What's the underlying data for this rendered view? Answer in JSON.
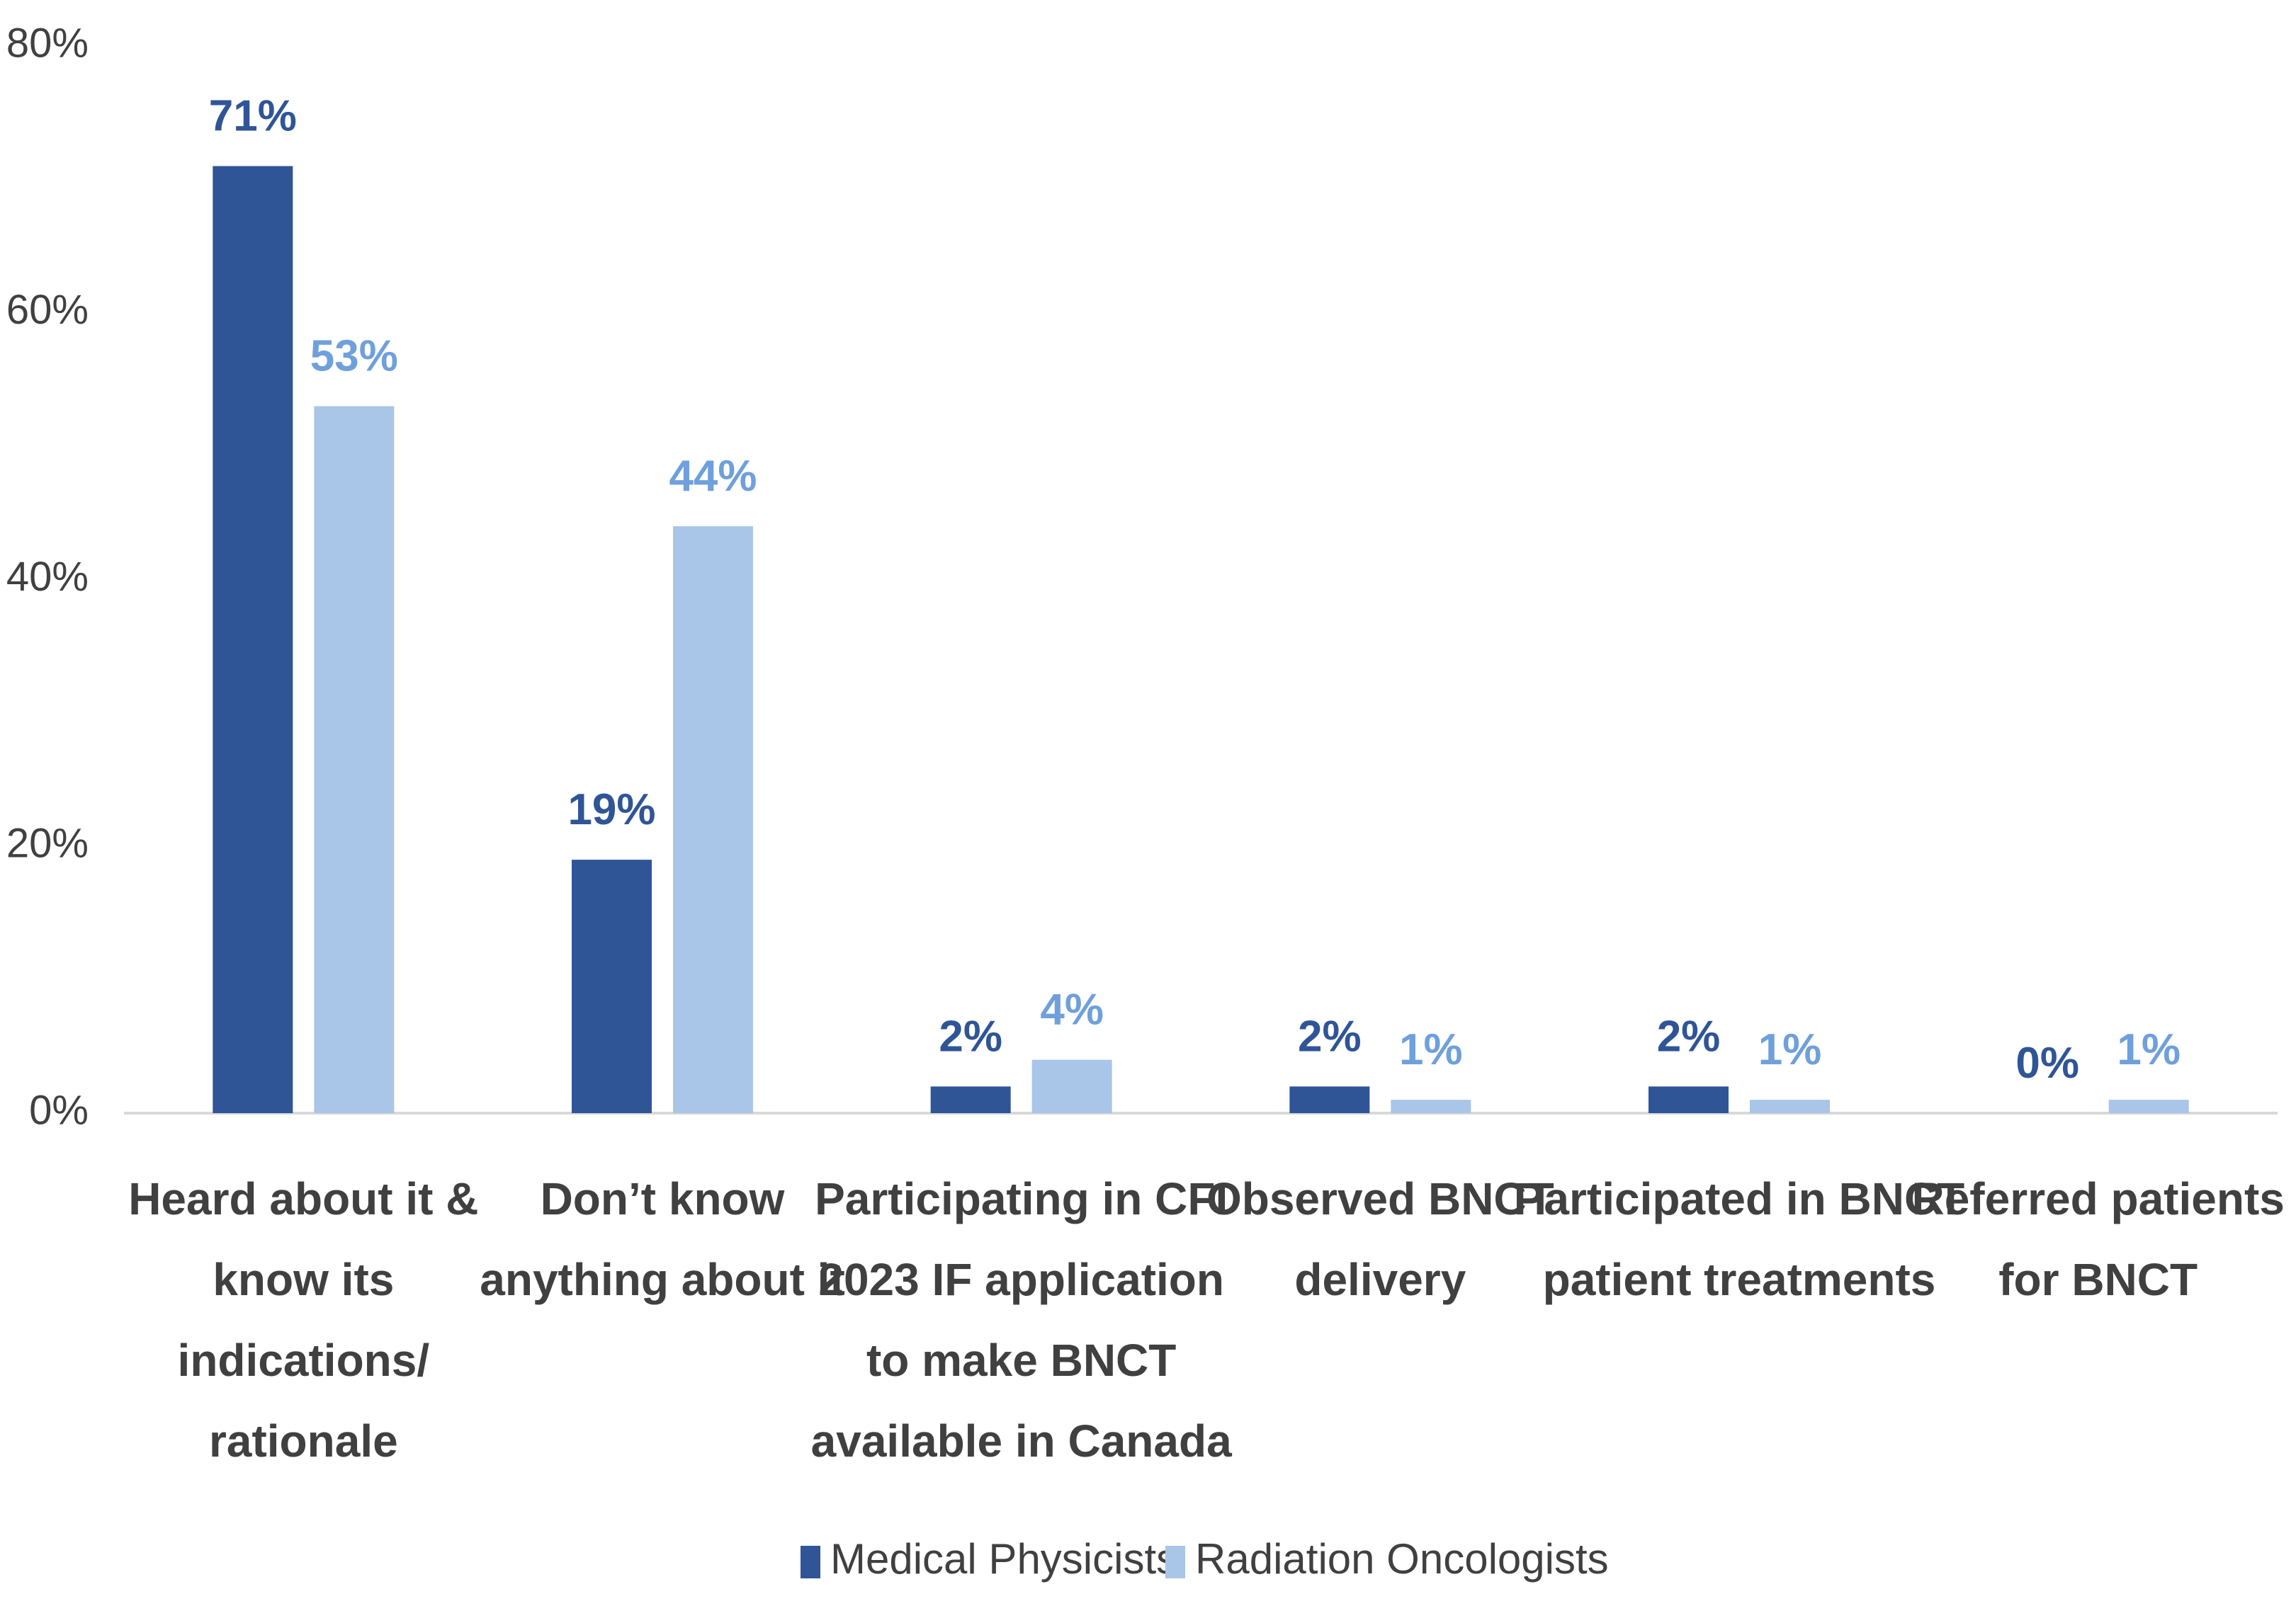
{
  "colors": {
    "medical_physicists": "#2f5597",
    "radiation_oncologists": "#a9c5e8",
    "medical_physicists_label": "#2f5597",
    "radiation_oncologists_label": "#6fa0db",
    "axis_text": "#404040",
    "axis_line": "#d9d9d9"
  },
  "chart_data": {
    "type": "bar",
    "title": "",
    "xlabel": "",
    "ylabel": "",
    "ylim": [
      0,
      80
    ],
    "yticks": [
      0,
      20,
      40,
      60,
      80
    ],
    "ytick_labels": [
      "0%",
      "20%",
      "40%",
      "60%",
      "80%"
    ],
    "grid": false,
    "legend_position": "bottom",
    "categories": [
      [
        "Heard about it &",
        "know its",
        "indications/",
        "rationale"
      ],
      [
        "Don’t know",
        "anything about it"
      ],
      [
        "Participating in CFI",
        "2023 IF application",
        "to make BNCT",
        "available in Canada"
      ],
      [
        "Observed BNCT",
        "delivery"
      ],
      [
        "Participated in BNCT",
        "patient treatments"
      ],
      [
        "Referred patients",
        "for BNCT"
      ]
    ],
    "series": [
      {
        "name": "Medical Physicists",
        "values": [
          71,
          19,
          2,
          2,
          2,
          0
        ],
        "labels": [
          "71%",
          "19%",
          "2%",
          "2%",
          "2%",
          "0%"
        ]
      },
      {
        "name": "Radiation Oncologists",
        "values": [
          53,
          44,
          4,
          1,
          1,
          1
        ],
        "labels": [
          "53%",
          "44%",
          "4%",
          "1%",
          "1%",
          "1%"
        ]
      }
    ]
  }
}
